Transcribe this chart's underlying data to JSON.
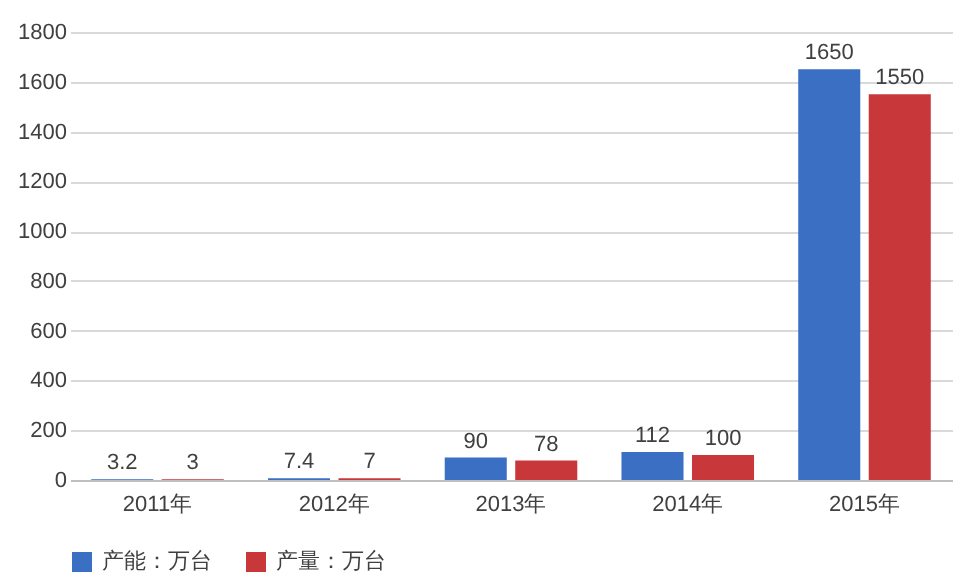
{
  "chart_data": {
    "type": "bar",
    "categories": [
      "2011年",
      "2012年",
      "2013年",
      "2014年",
      "2015年"
    ],
    "series": [
      {
        "name": "产能：万台",
        "color": "#3a6fc4",
        "values": [
          3.2,
          7.4,
          90,
          112,
          1650
        ]
      },
      {
        "name": "产量：万台",
        "color": "#c8383a",
        "values": [
          3,
          7,
          78,
          100,
          1550
        ]
      }
    ],
    "ylim": [
      0,
      1800
    ],
    "yticks": [
      0,
      200,
      400,
      600,
      800,
      1000,
      1200,
      1400,
      1600,
      1800
    ],
    "grid": "y",
    "legend": "bottom",
    "data_labels": true
  }
}
